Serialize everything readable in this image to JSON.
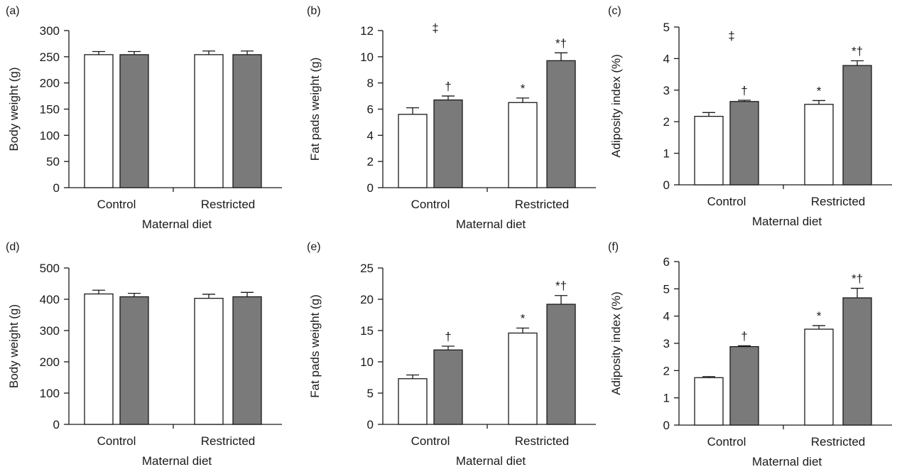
{
  "figure": {
    "colors": {
      "group1": "#ffffff",
      "group2": "#7a7a7a",
      "ink": "#1a1a1a"
    }
  },
  "chart_data": [
    {
      "panel": "(a)",
      "type": "bar",
      "categories": [
        "Control",
        "Restricted"
      ],
      "xlabel": "Maternal diet",
      "ylabel": "Body weight (g)",
      "ylim": [
        0,
        300
      ],
      "yticks": [
        0,
        50,
        100,
        150,
        200,
        250,
        300
      ],
      "series": [
        {
          "values": [
            254,
            254
          ],
          "errors": [
            6,
            7
          ],
          "color": "#ffffff"
        },
        {
          "values": [
            254,
            254
          ],
          "errors": [
            6,
            7
          ],
          "color": "#7a7a7a"
        }
      ],
      "annotations": []
    },
    {
      "panel": "(b)",
      "type": "bar",
      "categories": [
        "Control",
        "Restricted"
      ],
      "xlabel": "Maternal diet",
      "ylabel": "Fat pads weight (g)",
      "ylim": [
        0,
        12
      ],
      "yticks": [
        0,
        2,
        4,
        6,
        8,
        10,
        12
      ],
      "series": [
        {
          "values": [
            5.6,
            6.5
          ],
          "errors": [
            0.5,
            0.35
          ],
          "color": "#ffffff"
        },
        {
          "values": [
            6.7,
            9.7
          ],
          "errors": [
            0.3,
            0.6
          ],
          "color": "#7a7a7a"
        }
      ],
      "annotations": [
        {
          "text": "‡",
          "category": 0,
          "y": 11.9
        },
        {
          "text": "†",
          "category": 0,
          "series": 1
        },
        {
          "text": "*",
          "category": 1,
          "series": 0
        },
        {
          "text": "*†",
          "category": 1,
          "series": 1
        }
      ]
    },
    {
      "panel": "(c)",
      "type": "bar",
      "categories": [
        "Control",
        "Restricted"
      ],
      "xlabel": "Maternal diet",
      "ylabel": "Adiposity index (%)",
      "ylim": [
        0,
        5
      ],
      "yticks": [
        0,
        1,
        2,
        3,
        4,
        5
      ],
      "series": [
        {
          "values": [
            2.17,
            2.55
          ],
          "errors": [
            0.12,
            0.12
          ],
          "color": "#ffffff"
        },
        {
          "values": [
            2.64,
            3.78
          ],
          "errors": [
            0.04,
            0.15
          ],
          "color": "#7a7a7a"
        }
      ],
      "annotations": [
        {
          "text": "‡",
          "category": 0,
          "y": 4.6
        },
        {
          "text": "†",
          "category": 0,
          "series": 1
        },
        {
          "text": "*",
          "category": 1,
          "series": 0
        },
        {
          "text": "*†",
          "category": 1,
          "series": 1
        }
      ]
    },
    {
      "panel": "(d)",
      "type": "bar",
      "categories": [
        "Control",
        "Restricted"
      ],
      "xlabel": "Maternal diet",
      "ylabel": "Body weight (g)",
      "ylim": [
        0,
        500
      ],
      "yticks": [
        0,
        100,
        200,
        300,
        400,
        500
      ],
      "series": [
        {
          "values": [
            417,
            403
          ],
          "errors": [
            12,
            13
          ],
          "color": "#ffffff"
        },
        {
          "values": [
            408,
            408
          ],
          "errors": [
            11,
            14
          ],
          "color": "#7a7a7a"
        }
      ],
      "annotations": []
    },
    {
      "panel": "(e)",
      "type": "bar",
      "categories": [
        "Control",
        "Restricted"
      ],
      "xlabel": "Maternal diet",
      "ylabel": "Fat pads weight (g)",
      "ylim": [
        0,
        25
      ],
      "yticks": [
        0,
        5,
        10,
        15,
        20,
        25
      ],
      "series": [
        {
          "values": [
            7.3,
            14.6
          ],
          "errors": [
            0.6,
            0.8
          ],
          "color": "#ffffff"
        },
        {
          "values": [
            11.9,
            19.2
          ],
          "errors": [
            0.6,
            1.4
          ],
          "color": "#7a7a7a"
        }
      ],
      "annotations": [
        {
          "text": "†",
          "category": 0,
          "series": 1
        },
        {
          "text": "*",
          "category": 1,
          "series": 0
        },
        {
          "text": "*†",
          "category": 1,
          "series": 1
        }
      ]
    },
    {
      "panel": "(f)",
      "type": "bar",
      "categories": [
        "Control",
        "Restricted"
      ],
      "xlabel": "Maternal diet",
      "ylabel": "Adiposity index (%)",
      "ylim": [
        0,
        6
      ],
      "yticks": [
        0,
        1,
        2,
        3,
        4,
        5,
        6
      ],
      "series": [
        {
          "values": [
            1.74,
            3.52
          ],
          "errors": [
            0.04,
            0.13
          ],
          "color": "#ffffff"
        },
        {
          "values": [
            2.88,
            4.67
          ],
          "errors": [
            0.03,
            0.35
          ],
          "color": "#7a7a7a"
        }
      ],
      "annotations": [
        {
          "text": "†",
          "category": 0,
          "series": 1
        },
        {
          "text": "*",
          "category": 1,
          "series": 0
        },
        {
          "text": "*†",
          "category": 1,
          "series": 1
        }
      ]
    }
  ]
}
